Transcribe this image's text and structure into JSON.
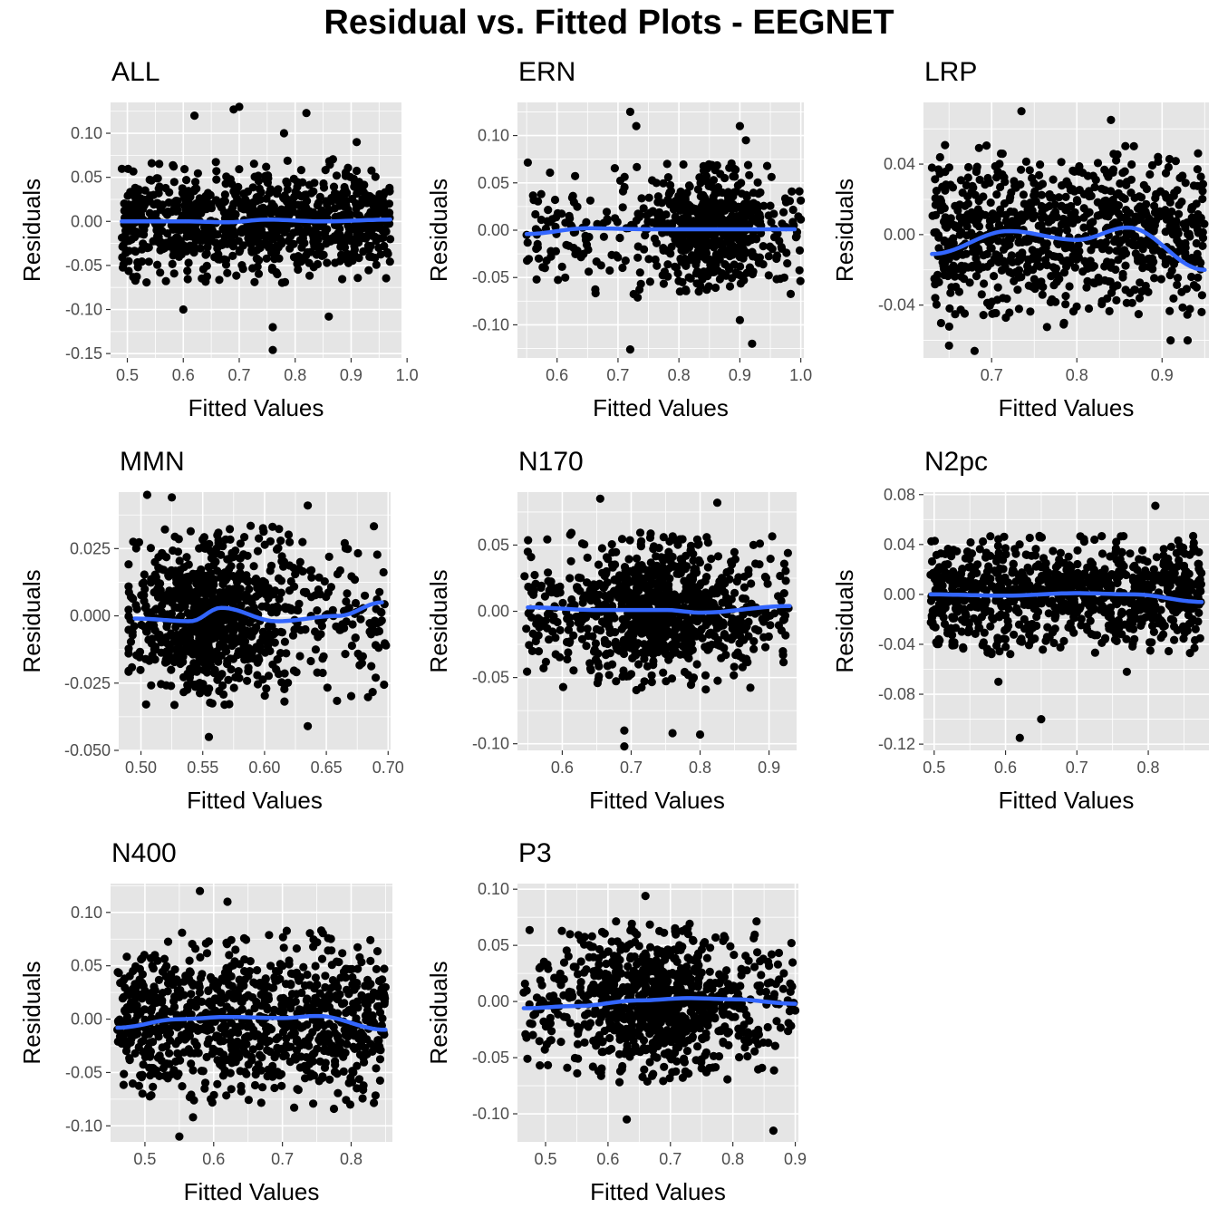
{
  "title": "Residual vs. Fitted Plots - EEGNET",
  "colors": {
    "panel": "#e5e5e5",
    "grid": "#ffffff",
    "points": "#000000",
    "smooth": "#3366ff"
  },
  "chart_data": [
    {
      "type": "scatter",
      "title": "ALL",
      "xlabel": "Fitted Values",
      "ylabel": "Residuals",
      "xlim": [
        0.47,
        0.99
      ],
      "ylim": [
        -0.155,
        0.135
      ],
      "xticks": [
        0.5,
        0.6,
        0.7,
        0.8,
        0.9,
        1.0
      ],
      "xtick_labels": [
        "0.5",
        "0.6",
        "0.7",
        "0.8",
        "0.9",
        "1.0"
      ],
      "yticks": [
        -0.15,
        -0.1,
        -0.05,
        0.0,
        0.05,
        0.1
      ],
      "ytick_labels": [
        "-0.15",
        "-0.10",
        "-0.05",
        "0.00",
        "0.05",
        "0.10"
      ],
      "points": {
        "x_range": [
          0.49,
          0.97
        ],
        "sd": 0.03,
        "n": 900,
        "seed": 11,
        "outliers": [
          [
            0.62,
            0.12
          ],
          [
            0.69,
            0.127
          ],
          [
            0.7,
            0.13
          ],
          [
            0.78,
            0.1
          ],
          [
            0.82,
            0.123
          ],
          [
            0.91,
            0.09
          ],
          [
            0.76,
            -0.12
          ],
          [
            0.76,
            -0.146
          ],
          [
            0.86,
            -0.108
          ],
          [
            0.6,
            -0.1
          ]
        ]
      },
      "smooth": {
        "x": [
          0.49,
          0.6,
          0.68,
          0.75,
          0.85,
          0.97
        ],
        "y": [
          0.0,
          0.0,
          -0.001,
          0.002,
          0.0,
          0.002
        ]
      },
      "layout_key": "p1"
    },
    {
      "type": "scatter",
      "title": "ERN",
      "xlabel": "Fitted Values",
      "ylabel": "Residuals",
      "xlim": [
        0.535,
        1.005
      ],
      "ylim": [
        -0.135,
        0.135
      ],
      "xticks": [
        0.6,
        0.7,
        0.8,
        0.9,
        1.0
      ],
      "xtick_labels": [
        "0.6",
        "0.7",
        "0.8",
        "0.9",
        "1.0"
      ],
      "yticks": [
        -0.1,
        -0.05,
        0.0,
        0.05,
        0.1
      ],
      "ytick_labels": [
        "-0.10",
        "-0.05",
        "0.00",
        "0.05",
        "0.10"
      ],
      "points": {
        "x_range": [
          0.55,
          1.0
        ],
        "sd": 0.03,
        "n": 700,
        "seed": 23,
        "cluster": [
          0.86,
          0.05
        ],
        "outliers": [
          [
            0.72,
            0.125
          ],
          [
            0.73,
            0.11
          ],
          [
            0.9,
            0.11
          ],
          [
            0.91,
            0.095
          ],
          [
            0.72,
            -0.126
          ],
          [
            0.92,
            -0.12
          ],
          [
            0.9,
            -0.095
          ],
          [
            0.55,
            -0.005
          ],
          [
            0.57,
            -0.03
          ],
          [
            0.58,
            -0.04
          ]
        ]
      },
      "smooth": {
        "x": [
          0.55,
          0.65,
          0.75,
          0.85,
          0.99
        ],
        "y": [
          -0.004,
          0.002,
          0.001,
          0.001,
          0.001
        ]
      },
      "layout_key": "p2"
    },
    {
      "type": "scatter",
      "title": "LRP",
      "xlabel": "Fitted Values",
      "ylabel": "Residuals",
      "xlim": [
        0.62,
        0.955
      ],
      "ylim": [
        -0.07,
        0.075
      ],
      "xticks": [
        0.7,
        0.8,
        0.9
      ],
      "xtick_labels": [
        "0.7",
        "0.8",
        "0.9"
      ],
      "yticks": [
        -0.04,
        0.0,
        0.04
      ],
      "ytick_labels": [
        "-0.04",
        "0.00",
        "0.04"
      ],
      "points": {
        "x_range": [
          0.63,
          0.95
        ],
        "sd": 0.022,
        "n": 850,
        "seed": 37,
        "outliers": [
          [
            0.735,
            0.07
          ],
          [
            0.84,
            0.065
          ],
          [
            0.65,
            -0.063
          ],
          [
            0.68,
            -0.066
          ],
          [
            0.91,
            -0.06
          ],
          [
            0.93,
            -0.06
          ],
          [
            0.63,
            0.038
          ]
        ]
      },
      "smooth": {
        "x": [
          0.63,
          0.72,
          0.8,
          0.86,
          0.95
        ],
        "y": [
          -0.011,
          0.002,
          -0.003,
          0.004,
          -0.02
        ]
      },
      "layout_key": "p3"
    },
    {
      "type": "scatter",
      "title": "MMN",
      "xlabel": "Fitted Values",
      "ylabel": "Residuals",
      "xlim": [
        0.482,
        0.702
      ],
      "ylim": [
        -0.05,
        0.046
      ],
      "xticks": [
        0.5,
        0.55,
        0.6,
        0.65,
        0.7
      ],
      "xtick_labels": [
        "0.50",
        "0.55",
        "0.60",
        "0.65",
        "0.70"
      ],
      "yticks": [
        -0.05,
        -0.025,
        0.0,
        0.025
      ],
      "ytick_labels": [
        "-0.050",
        "-0.025",
        "0.000",
        "0.025"
      ],
      "points": {
        "x_range": [
          0.49,
          0.7
        ],
        "sd": 0.014,
        "n": 900,
        "seed": 41,
        "cluster": [
          0.555,
          0.03
        ],
        "outliers": [
          [
            0.505,
            0.045
          ],
          [
            0.525,
            0.044
          ],
          [
            0.635,
            0.041
          ],
          [
            0.555,
            -0.045
          ],
          [
            0.635,
            -0.041
          ],
          [
            0.69,
            -0.023
          ]
        ]
      },
      "smooth": {
        "x": [
          0.495,
          0.54,
          0.565,
          0.61,
          0.66,
          0.695
        ],
        "y": [
          -0.001,
          -0.002,
          0.003,
          -0.002,
          0.0,
          0.005
        ]
      },
      "layout_key": "p4"
    },
    {
      "type": "scatter",
      "title": "N170",
      "xlabel": "Fitted Values",
      "ylabel": "Residuals",
      "xlim": [
        0.535,
        0.94
      ],
      "ylim": [
        -0.105,
        0.09
      ],
      "xticks": [
        0.6,
        0.7,
        0.8,
        0.9
      ],
      "xtick_labels": [
        "0.6",
        "0.7",
        "0.8",
        "0.9"
      ],
      "yticks": [
        -0.1,
        -0.05,
        0.0,
        0.05
      ],
      "ytick_labels": [
        "-0.10",
        "-0.05",
        "0.00",
        "0.05"
      ],
      "points": {
        "x_range": [
          0.545,
          0.93
        ],
        "sd": 0.025,
        "n": 900,
        "seed": 53,
        "cluster": [
          0.75,
          0.06
        ],
        "outliers": [
          [
            0.655,
            0.085
          ],
          [
            0.825,
            0.082
          ],
          [
            0.69,
            -0.102
          ],
          [
            0.69,
            -0.09
          ],
          [
            0.76,
            -0.092
          ],
          [
            0.8,
            -0.093
          ],
          [
            0.55,
            0.045
          ]
        ]
      },
      "smooth": {
        "x": [
          0.55,
          0.65,
          0.75,
          0.8,
          0.93
        ],
        "y": [
          0.003,
          0.001,
          0.001,
          -0.001,
          0.004
        ]
      },
      "layout_key": "p5"
    },
    {
      "type": "scatter",
      "title": "N2pc",
      "xlabel": "Fitted Values",
      "ylabel": "Residuals",
      "xlim": [
        0.485,
        0.885
      ],
      "ylim": [
        -0.125,
        0.082
      ],
      "xticks": [
        0.5,
        0.6,
        0.7,
        0.8
      ],
      "xtick_labels": [
        "0.5",
        "0.6",
        "0.7",
        "0.8"
      ],
      "yticks": [
        -0.12,
        -0.08,
        -0.04,
        0.0,
        0.04,
        0.08
      ],
      "ytick_labels": [
        "-0.12",
        "-0.08",
        "-0.04",
        "0.00",
        "0.04",
        "0.08"
      ],
      "points": {
        "x_range": [
          0.495,
          0.875
        ],
        "sd": 0.02,
        "n": 900,
        "seed": 67,
        "outliers": [
          [
            0.81,
            0.071
          ],
          [
            0.62,
            -0.115
          ],
          [
            0.65,
            -0.1
          ],
          [
            0.59,
            -0.07
          ],
          [
            0.77,
            -0.062
          ]
        ]
      },
      "smooth": {
        "x": [
          0.495,
          0.6,
          0.7,
          0.78,
          0.875
        ],
        "y": [
          0.0,
          -0.001,
          0.001,
          0.0,
          -0.006
        ]
      },
      "layout_key": "p6"
    },
    {
      "type": "scatter",
      "title": "N400",
      "xlabel": "Fitted Values",
      "ylabel": "Residuals",
      "xlim": [
        0.45,
        0.86
      ],
      "ylim": [
        -0.115,
        0.127
      ],
      "xticks": [
        0.5,
        0.6,
        0.7,
        0.8
      ],
      "xtick_labels": [
        "0.5",
        "0.6",
        "0.7",
        "0.8"
      ],
      "yticks": [
        -0.1,
        -0.05,
        0.0,
        0.05,
        0.1
      ],
      "ytick_labels": [
        "-0.10",
        "-0.05",
        "0.00",
        "0.05",
        "0.10"
      ],
      "points": {
        "x_range": [
          0.46,
          0.85
        ],
        "sd": 0.035,
        "n": 900,
        "seed": 79,
        "outliers": [
          [
            0.58,
            0.12
          ],
          [
            0.62,
            0.11
          ],
          [
            0.55,
            -0.11
          ],
          [
            0.57,
            -0.092
          ],
          [
            0.775,
            -0.084
          ],
          [
            0.46,
            -0.01
          ]
        ]
      },
      "smooth": {
        "x": [
          0.46,
          0.55,
          0.62,
          0.7,
          0.75,
          0.85
        ],
        "y": [
          -0.008,
          0.0,
          0.002,
          0.001,
          0.003,
          -0.01
        ]
      },
      "layout_key": "p7"
    },
    {
      "type": "scatter",
      "title": "P3",
      "xlabel": "Fitted Values",
      "ylabel": "Residuals",
      "xlim": [
        0.455,
        0.905
      ],
      "ylim": [
        -0.125,
        0.105
      ],
      "xticks": [
        0.5,
        0.6,
        0.7,
        0.8,
        0.9
      ],
      "xtick_labels": [
        "0.5",
        "0.6",
        "0.7",
        "0.8",
        "0.9"
      ],
      "yticks": [
        -0.1,
        -0.05,
        0.0,
        0.05,
        0.1
      ],
      "ytick_labels": [
        "-0.10",
        "-0.05",
        "0.00",
        "0.05",
        "0.10"
      ],
      "points": {
        "x_range": [
          0.465,
          0.9
        ],
        "sd": 0.03,
        "n": 900,
        "seed": 89,
        "cluster": [
          0.67,
          0.07
        ],
        "outliers": [
          [
            0.66,
            0.094
          ],
          [
            0.865,
            -0.115
          ],
          [
            0.63,
            -0.105
          ],
          [
            0.465,
            0.008
          ],
          [
            0.9,
            -0.008
          ]
        ]
      },
      "smooth": {
        "x": [
          0.465,
          0.55,
          0.65,
          0.73,
          0.8,
          0.9
        ],
        "y": [
          -0.006,
          -0.004,
          0.001,
          0.003,
          0.002,
          -0.002
        ]
      },
      "layout_key": "p8"
    }
  ]
}
